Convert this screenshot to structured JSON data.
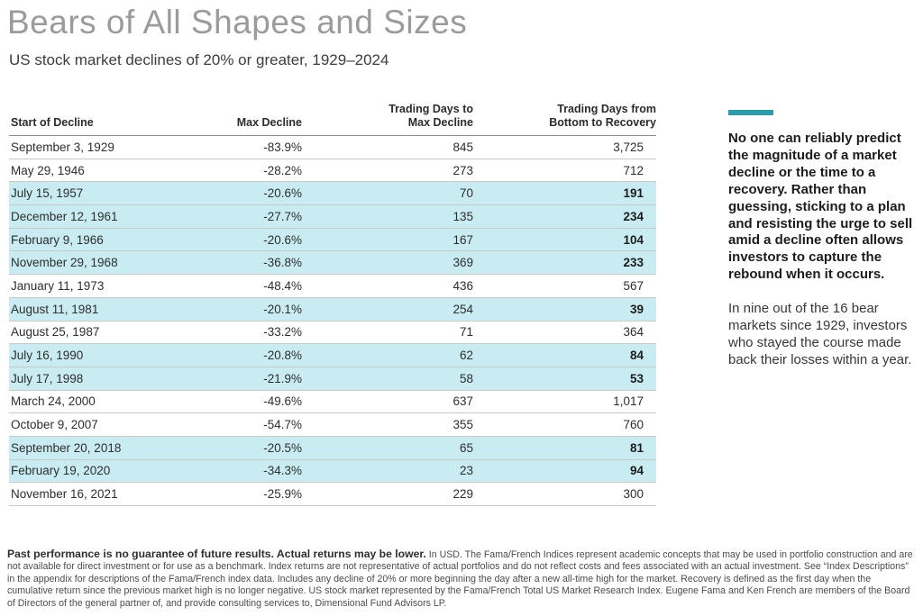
{
  "page": {
    "title": "Bears of All Shapes and Sizes",
    "subtitle": "US stock market declines of 20% or greater, 1929–2024"
  },
  "table": {
    "headers": [
      "Start of Decline",
      "Max Decline",
      "Trading Days to\nMax Decline",
      "Trading Days from\nBottom to Recovery"
    ],
    "rows": [
      {
        "start": "September 3, 1929",
        "max_decline": "-83.9%",
        "days_to_max": "845",
        "days_to_recovery": "3,725",
        "highlighted": false
      },
      {
        "start": "May 29, 1946",
        "max_decline": "-28.2%",
        "days_to_max": "273",
        "days_to_recovery": "712",
        "highlighted": false
      },
      {
        "start": "July 15, 1957",
        "max_decline": "-20.6%",
        "days_to_max": "70",
        "days_to_recovery": "191",
        "highlighted": true
      },
      {
        "start": "December 12, 1961",
        "max_decline": "-27.7%",
        "days_to_max": "135",
        "days_to_recovery": "234",
        "highlighted": true
      },
      {
        "start": "February 9, 1966",
        "max_decline": "-20.6%",
        "days_to_max": "167",
        "days_to_recovery": "104",
        "highlighted": true
      },
      {
        "start": "November 29, 1968",
        "max_decline": "-36.8%",
        "days_to_max": "369",
        "days_to_recovery": "233",
        "highlighted": true
      },
      {
        "start": "January 11, 1973",
        "max_decline": "-48.4%",
        "days_to_max": "436",
        "days_to_recovery": "567",
        "highlighted": false
      },
      {
        "start": "August 11, 1981",
        "max_decline": "-20.1%",
        "days_to_max": "254",
        "days_to_recovery": "39",
        "highlighted": true
      },
      {
        "start": "August 25, 1987",
        "max_decline": "-33.2%",
        "days_to_max": "71",
        "days_to_recovery": "364",
        "highlighted": false
      },
      {
        "start": "July 16, 1990",
        "max_decline": "-20.8%",
        "days_to_max": "62",
        "days_to_recovery": "84",
        "highlighted": true
      },
      {
        "start": "July 17, 1998",
        "max_decline": "-21.9%",
        "days_to_max": "58",
        "days_to_recovery": "53",
        "highlighted": true
      },
      {
        "start": "March 24, 2000",
        "max_decline": "-49.6%",
        "days_to_max": "637",
        "days_to_recovery": "1,017",
        "highlighted": false
      },
      {
        "start": "October 9, 2007",
        "max_decline": "-54.7%",
        "days_to_max": "355",
        "days_to_recovery": "760",
        "highlighted": false
      },
      {
        "start": "September 20, 2018",
        "max_decline": "-20.5%",
        "days_to_max": "65",
        "days_to_recovery": "81",
        "highlighted": true
      },
      {
        "start": "February 19, 2020",
        "max_decline": "-34.3%",
        "days_to_max": "23",
        "days_to_recovery": "94",
        "highlighted": true
      },
      {
        "start": "November 16, 2021",
        "max_decline": "-25.9%",
        "days_to_max": "229",
        "days_to_recovery": "300",
        "highlighted": false
      }
    ]
  },
  "sidebar": {
    "callout_bold": "No one can reliably predict the magnitude of a market decline or the time to a recovery. Rather than guessing, sticking to a plan and resisting the urge to sell amid a decline often allows investors to capture the rebound when it occurs.",
    "callout_regular": "In nine out of the 16 bear markets since 1929, investors who stayed the course made back their losses within a year."
  },
  "footnote": {
    "bold": "Past performance is no guarantee of future results. Actual returns may be lower.",
    "regular": "In USD. The Fama/French Indices represent academic concepts that may be used in portfolio construction and are not available for direct investment or for use as a benchmark. Index returns are not representative of actual portfolios and do not reflect costs and fees associated with an actual investment. See “Index Descriptions” in the appendix for descriptions of the Fama/French index data. Includes any decline of 20% or more beginning the day after a new all-time high for the market. Recovery is defined as the first day when the cumulative return since the previous market high is no longer negative. US stock market represented by the Fama/French Total US Market Research Index. Eugene Fama and Ken French are members of the Board of Directors of the general partner of, and provide consulting services to, Dimensional Fund Advisors LP."
  },
  "colors": {
    "accent_teal": "#2b9daa",
    "highlight_cyan": "#c9ecf2",
    "title_gray": "#9b9b9b"
  }
}
